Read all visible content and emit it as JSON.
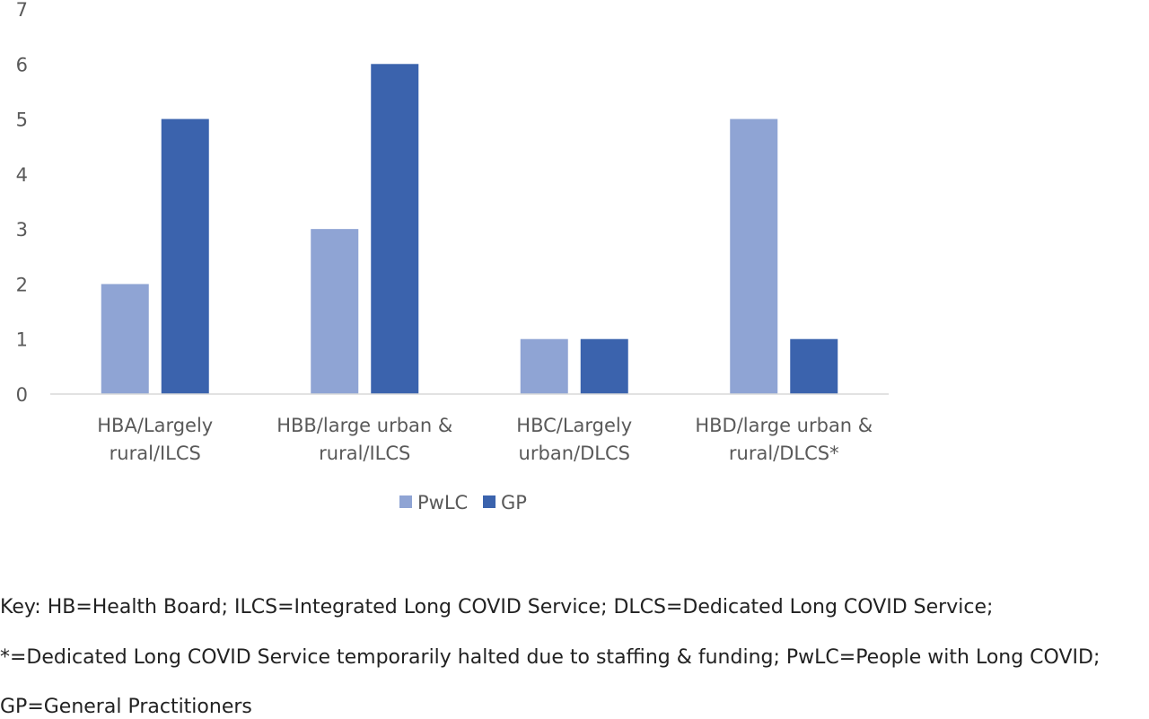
{
  "chart_data": {
    "type": "bar",
    "title": "",
    "xlabel": "",
    "ylabel": "",
    "ylim": [
      0,
      7
    ],
    "yticks": [
      0,
      1,
      2,
      3,
      4,
      5,
      6,
      7
    ],
    "grid": false,
    "legend_position": "bottom-center",
    "categories": [
      [
        "HBA/Largely",
        "rural/ILCS"
      ],
      [
        "HBB/large urban &",
        "rural/ILCS"
      ],
      [
        "HBC/Largely",
        "urban/DLCS"
      ],
      [
        "HBD/large urban &",
        "rural/DLCS*"
      ]
    ],
    "series": [
      {
        "name": "PwLC",
        "color": "#8fa4d4",
        "values": [
          2,
          3,
          1,
          5
        ]
      },
      {
        "name": "GP",
        "color": "#3b63ad",
        "values": [
          5,
          6,
          1,
          1
        ]
      }
    ]
  },
  "key": {
    "line1": "Key: HB=Health Board; ILCS=Integrated Long COVID Service; DLCS=Dedicated Long COVID Service;",
    "line2": "*=Dedicated Long COVID Service temporarily halted due to staffing & funding; PwLC=People with Long COVID;",
    "line3": "GP=General Practitioners"
  }
}
